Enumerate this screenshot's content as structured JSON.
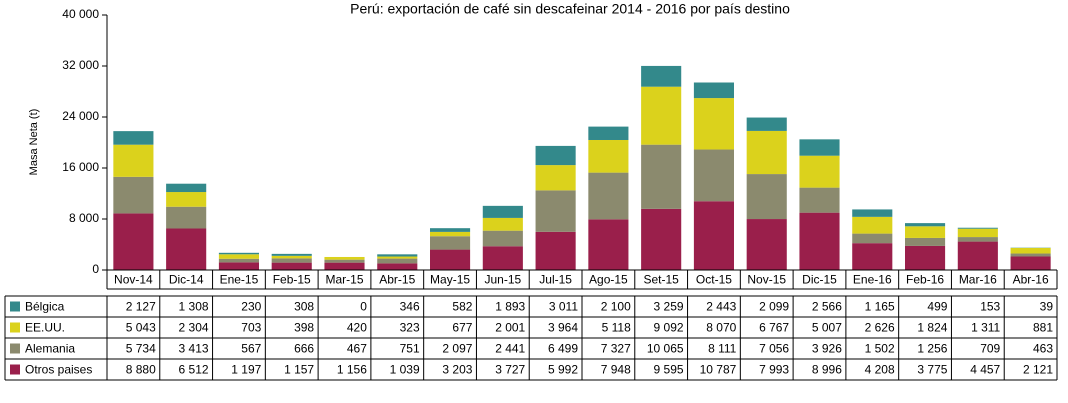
{
  "chart_data": {
    "type": "bar",
    "stacked": true,
    "title": "Perú: exportación de café sin descafeinar 2014 - 2016  por país destino",
    "y_label": "Masa Neta (t)",
    "categories": [
      "Nov-14",
      "Dic-14",
      "Ene-15",
      "Feb-15",
      "Mar-15",
      "Abr-15",
      "May-15",
      "Jun-15",
      "Jul-15",
      "Ago-15",
      "Set-15",
      "Oct-15",
      "Nov-15",
      "Dic-15",
      "Ene-16",
      "Feb-16",
      "Mar-16",
      "Abr-16"
    ],
    "series": [
      {
        "name": "Bélgica",
        "color": "#33898b",
        "values": [
          2127,
          1308,
          230,
          308,
          0,
          346,
          582,
          1893,
          3011,
          2100,
          3259,
          2443,
          2099,
          2566,
          1165,
          499,
          153,
          39
        ],
        "value_labels": [
          "2 127",
          "1 308",
          "230",
          "308",
          "0",
          "346",
          "582",
          "1 893",
          "3 011",
          "2 100",
          "3 259",
          "2 443",
          "2 099",
          "2 566",
          "1 165",
          "499",
          "153",
          "39"
        ]
      },
      {
        "name": "EE.UU.",
        "color": "#dbd21c",
        "values": [
          5043,
          2304,
          703,
          398,
          420,
          323,
          677,
          2001,
          3964,
          5118,
          9092,
          8070,
          6767,
          5007,
          2626,
          1824,
          1311,
          881
        ],
        "value_labels": [
          "5 043",
          "2 304",
          "703",
          "398",
          "420",
          "323",
          "677",
          "2 001",
          "3 964",
          "5 118",
          "9 092",
          "8 070",
          "6 767",
          "5 007",
          "2 626",
          "1 824",
          "1 311",
          "881"
        ]
      },
      {
        "name": "Alemania",
        "color": "#8b8a6e",
        "values": [
          5734,
          3413,
          567,
          666,
          467,
          751,
          2097,
          2441,
          6499,
          7327,
          10065,
          8111,
          7056,
          3926,
          1502,
          1256,
          709,
          463
        ],
        "value_labels": [
          "5 734",
          "3 413",
          "567",
          "666",
          "467",
          "751",
          "2 097",
          "2 441",
          "6 499",
          "7 327",
          "10 065",
          "8 111",
          "7 056",
          "3 926",
          "1 502",
          "1 256",
          "709",
          "463"
        ]
      },
      {
        "name": "Otros paises",
        "color": "#9a1f4b",
        "values": [
          8880,
          6512,
          1197,
          1157,
          1156,
          1039,
          3203,
          3727,
          5992,
          7948,
          9595,
          10787,
          7993,
          8996,
          4208,
          3775,
          4457,
          2121
        ],
        "value_labels": [
          "8 880",
          "6 512",
          "1 197",
          "1 157",
          "1 156",
          "1 039",
          "3 203",
          "3 727",
          "5 992",
          "7 948",
          "9 595",
          "10 787",
          "7 993",
          "8 996",
          "4 208",
          "3 775",
          "4 457",
          "2 121"
        ]
      }
    ],
    "ylim": [
      0,
      40000
    ],
    "yticks": [
      0,
      {
        "value": 8000,
        "label": "8 000"
      },
      {
        "value": 16000,
        "label": "16 000"
      },
      {
        "value": 24000,
        "label": "24 000"
      },
      {
        "value": 32000,
        "label": "32 000"
      },
      {
        "value": 40000,
        "label": "40 000"
      }
    ]
  }
}
